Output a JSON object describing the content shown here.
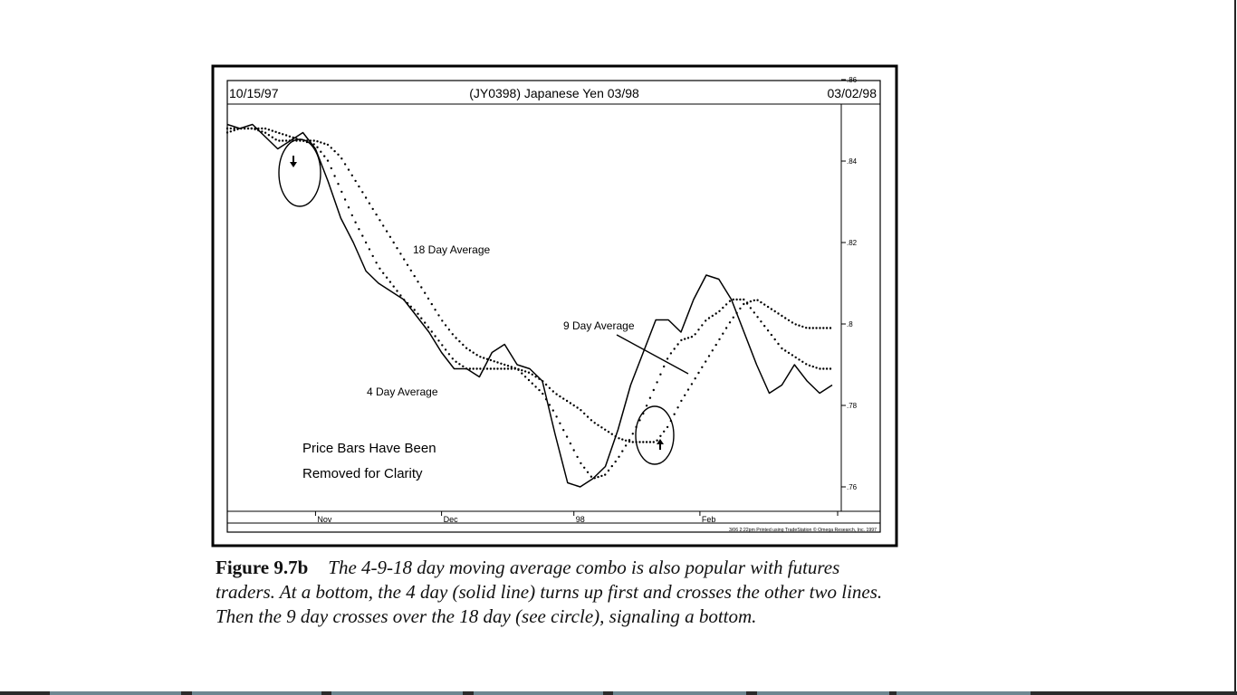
{
  "chart_data": {
    "type": "line",
    "header": {
      "start_date": "10/15/97",
      "title": "(JY0398) Japanese Yen 03/98",
      "end_date": "03/02/98"
    },
    "y_ticks": [
      ".86",
      ".84",
      ".82",
      ".8",
      ".78",
      ".76"
    ],
    "ylim": [
      0.752,
      0.86
    ],
    "x_ticks": [
      {
        "label": "Nov",
        "day": 14
      },
      {
        "label": "Dec",
        "day": 34
      },
      {
        "label": "98",
        "day": 55
      },
      {
        "label": "Feb",
        "day": 75
      }
    ],
    "xlim": [
      0,
      97
    ],
    "series": [
      {
        "name": "4 Day Average",
        "style": "solid",
        "x": [
          0,
          2,
          4,
          6,
          8,
          10,
          12,
          14,
          16,
          18,
          20,
          22,
          24,
          26,
          28,
          30,
          32,
          34,
          36,
          38,
          40,
          42,
          44,
          46,
          48,
          50,
          52,
          54,
          56,
          58,
          60,
          62,
          64,
          66,
          68,
          70,
          72,
          74,
          76,
          78,
          80,
          82,
          84,
          86,
          88,
          90,
          92,
          94,
          96
        ],
        "values": [
          0.849,
          0.848,
          0.849,
          0.846,
          0.843,
          0.845,
          0.847,
          0.843,
          0.835,
          0.826,
          0.82,
          0.813,
          0.81,
          0.808,
          0.806,
          0.802,
          0.798,
          0.793,
          0.789,
          0.789,
          0.787,
          0.793,
          0.795,
          0.79,
          0.789,
          0.786,
          0.773,
          0.761,
          0.76,
          0.762,
          0.765,
          0.774,
          0.785,
          0.793,
          0.801,
          0.801,
          0.798,
          0.806,
          0.812,
          0.811,
          0.806,
          0.798,
          0.79,
          0.783,
          0.785,
          0.79,
          0.786,
          0.783,
          0.785
        ]
      },
      {
        "name": "9 Day Average",
        "style": "dotted",
        "x": [
          0,
          2,
          4,
          6,
          8,
          10,
          12,
          14,
          16,
          18,
          20,
          22,
          24,
          26,
          28,
          30,
          32,
          34,
          36,
          38,
          40,
          42,
          44,
          46,
          48,
          50,
          52,
          54,
          56,
          58,
          60,
          62,
          64,
          66,
          68,
          70,
          72,
          74,
          76,
          78,
          80,
          82,
          84,
          86,
          88,
          90,
          92,
          94,
          96
        ],
        "values": [
          0.848,
          0.848,
          0.848,
          0.847,
          0.845,
          0.845,
          0.845,
          0.844,
          0.84,
          0.833,
          0.826,
          0.82,
          0.814,
          0.81,
          0.806,
          0.803,
          0.799,
          0.795,
          0.791,
          0.789,
          0.789,
          0.789,
          0.789,
          0.789,
          0.786,
          0.783,
          0.778,
          0.772,
          0.766,
          0.762,
          0.763,
          0.767,
          0.772,
          0.778,
          0.785,
          0.792,
          0.796,
          0.797,
          0.801,
          0.803,
          0.806,
          0.806,
          0.802,
          0.798,
          0.794,
          0.792,
          0.79,
          0.789,
          0.789
        ]
      },
      {
        "name": "18 Day Average",
        "style": "dotted",
        "x": [
          0,
          2,
          4,
          6,
          8,
          10,
          12,
          14,
          16,
          18,
          20,
          22,
          24,
          26,
          28,
          30,
          32,
          34,
          36,
          38,
          40,
          42,
          44,
          46,
          48,
          50,
          52,
          54,
          56,
          58,
          60,
          62,
          64,
          66,
          68,
          70,
          72,
          74,
          76,
          78,
          80,
          82,
          84,
          86,
          88,
          90,
          92,
          94,
          96
        ],
        "values": [
          0.847,
          0.848,
          0.848,
          0.848,
          0.847,
          0.846,
          0.845,
          0.845,
          0.844,
          0.841,
          0.836,
          0.831,
          0.826,
          0.821,
          0.816,
          0.811,
          0.806,
          0.801,
          0.797,
          0.794,
          0.792,
          0.791,
          0.79,
          0.789,
          0.788,
          0.786,
          0.783,
          0.781,
          0.779,
          0.776,
          0.774,
          0.772,
          0.771,
          0.771,
          0.771,
          0.775,
          0.781,
          0.786,
          0.791,
          0.796,
          0.801,
          0.805,
          0.806,
          0.804,
          0.802,
          0.8,
          0.799,
          0.799,
          0.799
        ]
      }
    ],
    "annotations": {
      "label_18": "18 Day Average",
      "label_9": "9 Day Average",
      "label_4": "4 Day Average",
      "note_line1": "Price Bars Have Been",
      "note_line2": "Removed for Clarity",
      "footer": "3/06  2:22pm Printed using TradeStation © Omega Research, Inc. 1997"
    }
  },
  "caption": {
    "figure_label": "Figure 9.7b",
    "text": "The 4-9-18 day moving average combo is also popular with futures traders. At a bottom, the 4 day (solid line) turns up first and crosses the other two lines. Then the 9 day crosses over the 18 day (see circle), signaling a bottom."
  }
}
